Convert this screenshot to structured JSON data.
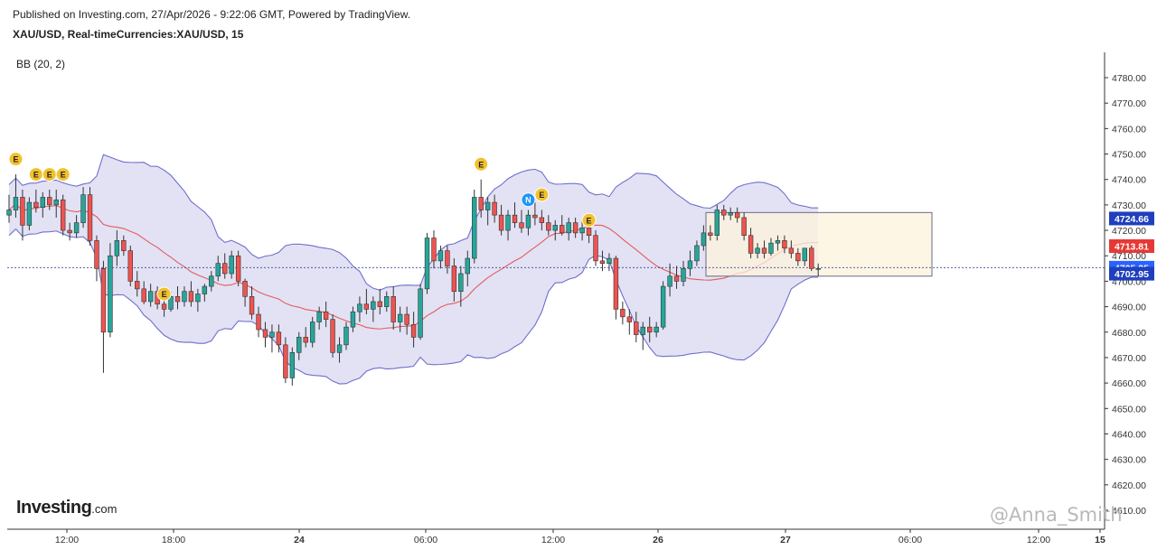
{
  "header": {
    "published": "Published on Investing.com, 27/Apr/2026 - 9:22:06 GMT, Powered by TradingView.",
    "symbol_line": "XAU/USD, Real-timeCurrencies:XAU/USD, 15"
  },
  "indicator_label": "BB (20, 2)",
  "logo": {
    "main": "Investing",
    "suffix": ".com"
  },
  "watermark": "@Anna_Smith",
  "colors": {
    "up": "#26a69a",
    "down": "#ef5350",
    "band_fill": "#d6d6ef",
    "band_line": "#6f6fce",
    "basis": "#e45c5c",
    "box_fill": "#fdf3dc",
    "box_border": "#6a6a8a",
    "label_blue": "#1f3fbd",
    "label_red": "#e53935",
    "label_lightblue": "#2962ff",
    "event": "#f2c12e"
  },
  "chart_data": {
    "type": "candlestick",
    "y_axis": {
      "min": 4606,
      "max": 4788,
      "ticks": [
        "4780.00",
        "4770.00",
        "4760.00",
        "4750.00",
        "4740.00",
        "4730.00",
        "4720.00",
        "4710.00",
        "4700.00",
        "4690.00",
        "4680.00",
        "4670.00",
        "4660.00",
        "4650.00",
        "4640.00",
        "4630.00",
        "4620.00",
        "4610.00"
      ]
    },
    "x_axis": {
      "ticks": [
        "12:00",
        "18:00",
        "24",
        "06:00",
        "12:00",
        "26",
        "27",
        "06:00",
        "12:00",
        "15"
      ]
    },
    "price_labels": [
      {
        "value": 4724.66,
        "text": "4724.66",
        "style": "blue"
      },
      {
        "value": 4713.81,
        "text": "4713.81",
        "style": "red"
      },
      {
        "value": 4705.35,
        "text": "4705.35",
        "style": "lightblue"
      },
      {
        "value": 4702.95,
        "text": "4702.95",
        "style": "blue"
      }
    ],
    "current_price_line": 4705.35,
    "highlight_box": {
      "price_top": 4727,
      "price_bottom": 4702,
      "label": ""
    },
    "candles": [
      {
        "o": 4726,
        "h": 4734,
        "l": 4723,
        "c": 4728
      },
      {
        "o": 4728,
        "h": 4742,
        "l": 4725,
        "c": 4733
      },
      {
        "o": 4733,
        "h": 4736,
        "l": 4716,
        "c": 4722
      },
      {
        "o": 4722,
        "h": 4733,
        "l": 4720,
        "c": 4731
      },
      {
        "o": 4731,
        "h": 4736,
        "l": 4727,
        "c": 4729
      },
      {
        "o": 4729,
        "h": 4735,
        "l": 4725,
        "c": 4733
      },
      {
        "o": 4733,
        "h": 4736,
        "l": 4728,
        "c": 4730
      },
      {
        "o": 4730,
        "h": 4736,
        "l": 4725,
        "c": 4732
      },
      {
        "o": 4732,
        "h": 4734,
        "l": 4718,
        "c": 4720
      },
      {
        "o": 4720,
        "h": 4723,
        "l": 4716,
        "c": 4719
      },
      {
        "o": 4719,
        "h": 4726,
        "l": 4717,
        "c": 4723
      },
      {
        "o": 4723,
        "h": 4737,
        "l": 4721,
        "c": 4734
      },
      {
        "o": 4734,
        "h": 4737,
        "l": 4714,
        "c": 4716
      },
      {
        "o": 4716,
        "h": 4718,
        "l": 4700,
        "c": 4705
      },
      {
        "o": 4705,
        "h": 4708,
        "l": 4664,
        "c": 4680
      },
      {
        "o": 4680,
        "h": 4715,
        "l": 4678,
        "c": 4710
      },
      {
        "o": 4710,
        "h": 4720,
        "l": 4706,
        "c": 4716
      },
      {
        "o": 4716,
        "h": 4718,
        "l": 4710,
        "c": 4712
      },
      {
        "o": 4712,
        "h": 4714,
        "l": 4698,
        "c": 4700
      },
      {
        "o": 4700,
        "h": 4704,
        "l": 4694,
        "c": 4697
      },
      {
        "o": 4697,
        "h": 4700,
        "l": 4691,
        "c": 4692
      },
      {
        "o": 4692,
        "h": 4699,
        "l": 4690,
        "c": 4696
      },
      {
        "o": 4696,
        "h": 4698,
        "l": 4689,
        "c": 4691
      },
      {
        "o": 4691,
        "h": 4694,
        "l": 4686,
        "c": 4689
      },
      {
        "o": 4689,
        "h": 4696,
        "l": 4688,
        "c": 4694
      },
      {
        "o": 4694,
        "h": 4698,
        "l": 4689,
        "c": 4692
      },
      {
        "o": 4692,
        "h": 4698,
        "l": 4690,
        "c": 4696
      },
      {
        "o": 4696,
        "h": 4700,
        "l": 4690,
        "c": 4692
      },
      {
        "o": 4692,
        "h": 4697,
        "l": 4688,
        "c": 4695
      },
      {
        "o": 4695,
        "h": 4699,
        "l": 4692,
        "c": 4698
      },
      {
        "o": 4698,
        "h": 4704,
        "l": 4696,
        "c": 4702
      },
      {
        "o": 4702,
        "h": 4710,
        "l": 4700,
        "c": 4707
      },
      {
        "o": 4707,
        "h": 4711,
        "l": 4701,
        "c": 4703
      },
      {
        "o": 4703,
        "h": 4712,
        "l": 4701,
        "c": 4710
      },
      {
        "o": 4710,
        "h": 4712,
        "l": 4698,
        "c": 4700
      },
      {
        "o": 4700,
        "h": 4701,
        "l": 4690,
        "c": 4694
      },
      {
        "o": 4694,
        "h": 4698,
        "l": 4685,
        "c": 4687
      },
      {
        "o": 4687,
        "h": 4690,
        "l": 4678,
        "c": 4681
      },
      {
        "o": 4681,
        "h": 4684,
        "l": 4674,
        "c": 4678
      },
      {
        "o": 4678,
        "h": 4683,
        "l": 4672,
        "c": 4680
      },
      {
        "o": 4680,
        "h": 4683,
        "l": 4672,
        "c": 4675
      },
      {
        "o": 4675,
        "h": 4678,
        "l": 4660,
        "c": 4662
      },
      {
        "o": 4662,
        "h": 4674,
        "l": 4659,
        "c": 4672
      },
      {
        "o": 4672,
        "h": 4680,
        "l": 4669,
        "c": 4678
      },
      {
        "o": 4678,
        "h": 4682,
        "l": 4674,
        "c": 4676
      },
      {
        "o": 4676,
        "h": 4686,
        "l": 4674,
        "c": 4684
      },
      {
        "o": 4684,
        "h": 4690,
        "l": 4681,
        "c": 4688
      },
      {
        "o": 4688,
        "h": 4692,
        "l": 4682,
        "c": 4685
      },
      {
        "o": 4685,
        "h": 4687,
        "l": 4670,
        "c": 4672
      },
      {
        "o": 4672,
        "h": 4678,
        "l": 4668,
        "c": 4675
      },
      {
        "o": 4675,
        "h": 4684,
        "l": 4673,
        "c": 4682
      },
      {
        "o": 4682,
        "h": 4690,
        "l": 4680,
        "c": 4688
      },
      {
        "o": 4688,
        "h": 4694,
        "l": 4684,
        "c": 4691
      },
      {
        "o": 4691,
        "h": 4697,
        "l": 4687,
        "c": 4689
      },
      {
        "o": 4689,
        "h": 4694,
        "l": 4684,
        "c": 4692
      },
      {
        "o": 4692,
        "h": 4697,
        "l": 4687,
        "c": 4690
      },
      {
        "o": 4690,
        "h": 4696,
        "l": 4688,
        "c": 4694
      },
      {
        "o": 4694,
        "h": 4698,
        "l": 4681,
        "c": 4684
      },
      {
        "o": 4684,
        "h": 4690,
        "l": 4680,
        "c": 4687
      },
      {
        "o": 4687,
        "h": 4690,
        "l": 4679,
        "c": 4683
      },
      {
        "o": 4683,
        "h": 4688,
        "l": 4674,
        "c": 4678
      },
      {
        "o": 4678,
        "h": 4699,
        "l": 4677,
        "c": 4697
      },
      {
        "o": 4697,
        "h": 4719,
        "l": 4695,
        "c": 4717
      },
      {
        "o": 4717,
        "h": 4720,
        "l": 4705,
        "c": 4708
      },
      {
        "o": 4708,
        "h": 4714,
        "l": 4705,
        "c": 4712
      },
      {
        "o": 4712,
        "h": 4714,
        "l": 4703,
        "c": 4706
      },
      {
        "o": 4706,
        "h": 4709,
        "l": 4692,
        "c": 4696
      },
      {
        "o": 4696,
        "h": 4706,
        "l": 4690,
        "c": 4703
      },
      {
        "o": 4703,
        "h": 4712,
        "l": 4698,
        "c": 4709
      },
      {
        "o": 4709,
        "h": 4736,
        "l": 4707,
        "c": 4733
      },
      {
        "o": 4733,
        "h": 4740,
        "l": 4725,
        "c": 4728
      },
      {
        "o": 4728,
        "h": 4733,
        "l": 4722,
        "c": 4731
      },
      {
        "o": 4731,
        "h": 4734,
        "l": 4723,
        "c": 4726
      },
      {
        "o": 4726,
        "h": 4730,
        "l": 4718,
        "c": 4720
      },
      {
        "o": 4720,
        "h": 4728,
        "l": 4716,
        "c": 4726
      },
      {
        "o": 4726,
        "h": 4731,
        "l": 4721,
        "c": 4723
      },
      {
        "o": 4723,
        "h": 4728,
        "l": 4719,
        "c": 4721
      },
      {
        "o": 4721,
        "h": 4728,
        "l": 4718,
        "c": 4726
      },
      {
        "o": 4726,
        "h": 4731,
        "l": 4722,
        "c": 4725
      },
      {
        "o": 4725,
        "h": 4728,
        "l": 4720,
        "c": 4723
      },
      {
        "o": 4723,
        "h": 4726,
        "l": 4718,
        "c": 4720
      },
      {
        "o": 4720,
        "h": 4724,
        "l": 4716,
        "c": 4722
      },
      {
        "o": 4722,
        "h": 4726,
        "l": 4718,
        "c": 4719
      },
      {
        "o": 4719,
        "h": 4725,
        "l": 4716,
        "c": 4723
      },
      {
        "o": 4723,
        "h": 4725,
        "l": 4717,
        "c": 4719
      },
      {
        "o": 4719,
        "h": 4724,
        "l": 4716,
        "c": 4721
      },
      {
        "o": 4721,
        "h": 4724,
        "l": 4715,
        "c": 4718
      },
      {
        "o": 4718,
        "h": 4720,
        "l": 4706,
        "c": 4708
      },
      {
        "o": 4708,
        "h": 4712,
        "l": 4704,
        "c": 4707
      },
      {
        "o": 4707,
        "h": 4711,
        "l": 4704,
        "c": 4709
      },
      {
        "o": 4709,
        "h": 4710,
        "l": 4685,
        "c": 4689
      },
      {
        "o": 4689,
        "h": 4692,
        "l": 4683,
        "c": 4686
      },
      {
        "o": 4686,
        "h": 4689,
        "l": 4679,
        "c": 4684
      },
      {
        "o": 4684,
        "h": 4688,
        "l": 4676,
        "c": 4679
      },
      {
        "o": 4679,
        "h": 4684,
        "l": 4673,
        "c": 4682
      },
      {
        "o": 4682,
        "h": 4686,
        "l": 4676,
        "c": 4680
      },
      {
        "o": 4680,
        "h": 4684,
        "l": 4678,
        "c": 4682
      },
      {
        "o": 4682,
        "h": 4700,
        "l": 4681,
        "c": 4698
      },
      {
        "o": 4698,
        "h": 4707,
        "l": 4694,
        "c": 4702
      },
      {
        "o": 4702,
        "h": 4706,
        "l": 4697,
        "c": 4700
      },
      {
        "o": 4700,
        "h": 4708,
        "l": 4698,
        "c": 4705
      },
      {
        "o": 4705,
        "h": 4712,
        "l": 4702,
        "c": 4708
      },
      {
        "o": 4708,
        "h": 4716,
        "l": 4706,
        "c": 4714
      },
      {
        "o": 4714,
        "h": 4722,
        "l": 4712,
        "c": 4719
      },
      {
        "o": 4719,
        "h": 4722,
        "l": 4716,
        "c": 4718
      },
      {
        "o": 4718,
        "h": 4730,
        "l": 4716,
        "c": 4728
      },
      {
        "o": 4728,
        "h": 4730,
        "l": 4724,
        "c": 4726
      },
      {
        "o": 4726,
        "h": 4729,
        "l": 4724,
        "c": 4727
      },
      {
        "o": 4727,
        "h": 4729,
        "l": 4723,
        "c": 4725
      },
      {
        "o": 4725,
        "h": 4727,
        "l": 4716,
        "c": 4718
      },
      {
        "o": 4718,
        "h": 4721,
        "l": 4709,
        "c": 4711
      },
      {
        "o": 4711,
        "h": 4715,
        "l": 4709,
        "c": 4713
      },
      {
        "o": 4713,
        "h": 4716,
        "l": 4709,
        "c": 4711
      },
      {
        "o": 4711,
        "h": 4717,
        "l": 4710,
        "c": 4715
      },
      {
        "o": 4715,
        "h": 4718,
        "l": 4712,
        "c": 4716
      },
      {
        "o": 4716,
        "h": 4718,
        "l": 4711,
        "c": 4713
      },
      {
        "o": 4713,
        "h": 4716,
        "l": 4709,
        "c": 4711
      },
      {
        "o": 4711,
        "h": 4713,
        "l": 4706,
        "c": 4708
      },
      {
        "o": 4708,
        "h": 4713,
        "l": 4706,
        "c": 4713
      },
      {
        "o": 4713,
        "h": 4714,
        "l": 4704,
        "c": 4705
      },
      {
        "o": 4705,
        "h": 4707,
        "l": 4702,
        "c": 4705
      }
    ],
    "event_markers": [
      {
        "candle": 1,
        "letter": "E",
        "price": 4748
      },
      {
        "candle": 4,
        "letter": "E",
        "price": 4742
      },
      {
        "candle": 6,
        "letter": "E",
        "price": 4742
      },
      {
        "candle": 8,
        "letter": "E",
        "price": 4742
      },
      {
        "candle": 23,
        "letter": "E",
        "price": 4695
      },
      {
        "candle": 70,
        "letter": "E",
        "price": 4746
      },
      {
        "candle": 77,
        "letter": "N",
        "price": 4732
      },
      {
        "candle": 79,
        "letter": "E",
        "price": 4734
      },
      {
        "candle": 86,
        "letter": "E",
        "price": 4724
      }
    ]
  }
}
